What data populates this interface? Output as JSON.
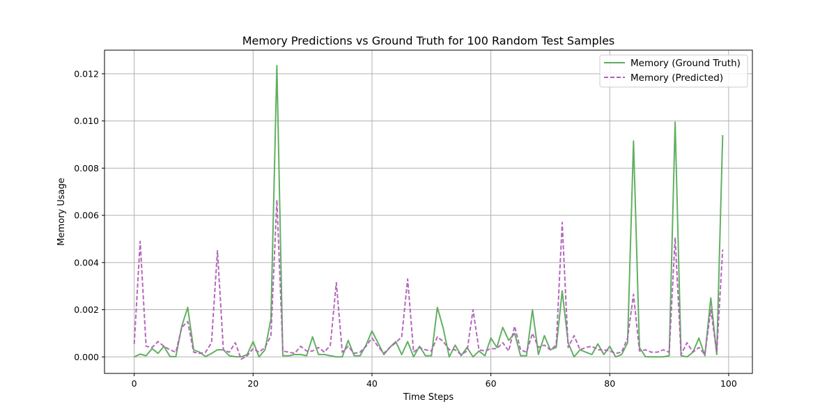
{
  "chart_data": {
    "type": "line",
    "title": "Memory Predictions vs Ground Truth for 100 Random Test Samples",
    "xlabel": "Time Steps",
    "ylabel": "Memory Usage",
    "xlim": [
      -5,
      104
    ],
    "ylim": [
      -0.0007,
      0.013
    ],
    "xticks": [
      0,
      20,
      40,
      60,
      80,
      100
    ],
    "yticks": [
      0.0,
      0.002,
      0.004,
      0.006,
      0.008,
      0.01,
      0.012
    ],
    "xtick_labels": [
      "0",
      "20",
      "40",
      "60",
      "80",
      "100"
    ],
    "ytick_labels": [
      "0.000",
      "0.002",
      "0.004",
      "0.006",
      "0.008",
      "0.010",
      "0.012"
    ],
    "grid": true,
    "legend_position": "top-right",
    "series": [
      {
        "name": "Memory (Ground Truth)",
        "color": "#5aab5a",
        "style": "solid",
        "values": [
          0.0,
          0.00012,
          5e-05,
          0.00035,
          0.00015,
          0.00045,
          2e-05,
          1e-05,
          0.0013,
          0.0021,
          0.0003,
          0.0002,
          1e-05,
          0.00015,
          0.0003,
          0.0003,
          5e-05,
          1e-05,
          0.0,
          0.0001,
          0.00065,
          0.0,
          0.0003,
          0.0016,
          0.01235,
          5e-05,
          5e-05,
          0.0001,
          0.0001,
          5e-05,
          0.00085,
          0.0001,
          0.0001,
          5e-05,
          0.0,
          0.0,
          0.0007,
          5e-05,
          5e-05,
          0.0005,
          0.0011,
          0.0006,
          0.0001,
          0.0004,
          0.00065,
          0.0001,
          0.00065,
          0.0,
          0.00045,
          5e-05,
          5e-05,
          0.0021,
          0.0012,
          0.0,
          0.0005,
          5e-05,
          0.0004,
          0.0,
          0.00025,
          5e-05,
          0.0008,
          0.0004,
          0.00125,
          0.0007,
          0.001,
          5e-05,
          5e-05,
          0.002,
          0.0001,
          0.0009,
          0.0003,
          0.0004,
          0.0028,
          0.0006,
          0.0,
          0.0003,
          0.0002,
          0.0001,
          0.00055,
          0.0001,
          0.00045,
          0.0,
          0.0001,
          0.0006,
          0.00915,
          0.0004,
          1e-05,
          0.0,
          0.0,
          0.0,
          5e-05,
          0.00995,
          5e-05,
          0.0,
          0.0002,
          0.0008,
          5e-05,
          0.0025,
          0.0001,
          0.0094
        ]
      },
      {
        "name": "Memory (Predicted)",
        "color": "#b05fb8",
        "style": "dashed",
        "values": [
          0.00055,
          0.0049,
          0.00045,
          0.0004,
          0.00065,
          0.00045,
          0.0003,
          0.0002,
          0.00125,
          0.0015,
          0.0002,
          0.00015,
          0.0002,
          0.0006,
          0.0045,
          0.0003,
          0.0002,
          0.0006,
          -0.0001,
          5e-05,
          0.00035,
          0.0002,
          0.0004,
          0.0009,
          0.00665,
          0.00025,
          0.0002,
          0.00015,
          0.00045,
          0.00025,
          0.00025,
          0.0004,
          0.0002,
          0.0005,
          0.00315,
          0.0002,
          0.00045,
          0.00015,
          0.0002,
          0.00045,
          0.0008,
          0.00045,
          0.00015,
          0.0004,
          0.0006,
          0.00085,
          0.0033,
          0.0002,
          0.0004,
          0.0003,
          0.00025,
          0.00085,
          0.00065,
          0.0003,
          0.0003,
          0.0001,
          0.00025,
          0.002,
          0.0003,
          0.00025,
          0.00035,
          0.00035,
          0.0006,
          0.00025,
          0.0013,
          0.0003,
          0.0002,
          0.001,
          0.0004,
          0.0005,
          0.0003,
          0.0005,
          0.0057,
          0.0004,
          0.0009,
          0.0003,
          0.0004,
          0.00045,
          0.0003,
          0.0003,
          0.00025,
          0.00015,
          0.0002,
          0.0008,
          0.00265,
          0.00025,
          0.0003,
          0.0002,
          0.0002,
          0.0003,
          0.0002,
          0.00505,
          0.0001,
          0.0006,
          0.0002,
          0.0004,
          0.0001,
          0.002,
          0.0002,
          0.00455
        ]
      }
    ]
  }
}
